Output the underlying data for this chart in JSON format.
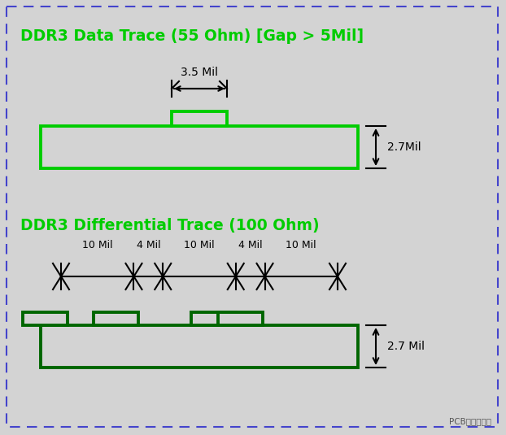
{
  "bg_color": "#d3d3d3",
  "border_color": "#4444cc",
  "title1": "DDR3 Data Trace (55 Ohm) [Gap > 5Mil]",
  "title2": "DDR3 Differential Trace (100 Ohm)",
  "title_color": "#00cc00",
  "trace_color_green": "#00cc00",
  "trace_color_dark": "#006600",
  "dim_color": "#000000",
  "face_color": "#d3d3d3",
  "watermark": "PCB设计与学习",
  "label_35mil": "3.5 Mil",
  "label_27mil_1": "2.7Mil",
  "label_27mil_2": "2.7 Mil",
  "diff_labels": [
    "10 Mil",
    "4 Mil",
    "10 Mil",
    "4 Mil",
    "10 Mil"
  ],
  "seg_widths": [
    10,
    4,
    10,
    4,
    10
  ],
  "fig_w": 6.22,
  "fig_h": 5.35,
  "dpi": 100
}
